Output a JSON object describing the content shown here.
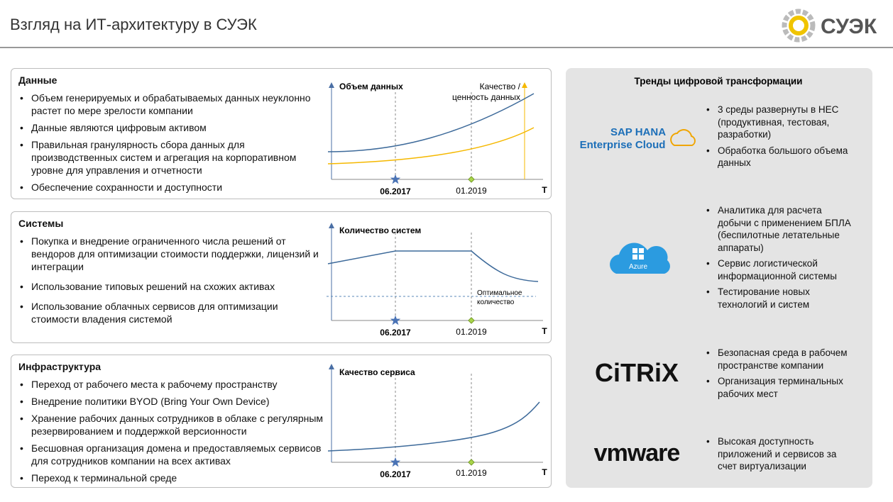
{
  "header": {
    "title": "Взгляд на ИТ-архитектуру в СУЭК",
    "logo": "СУЭК"
  },
  "sections": [
    {
      "title": "Данные",
      "bullets": [
        "Объем генерируемых и обрабатываемых данных неуклонно растет по мере зрелости компании",
        "Данные являются цифровым активом",
        "Правильная гранулярность сбора данных для производственных систем и агрегация на корпоративном уровне для управления и отчетности",
        "Обеспечение сохранности и доступности"
      ],
      "chart": {
        "y_label": "Объем данных",
        "y2_label": [
          "Качество /",
          "ценность данных"
        ],
        "marks": [
          "06.2017",
          "01.2019"
        ],
        "x_end": "T"
      }
    },
    {
      "title": "Системы",
      "bullets": [
        "Покупка и внедрение ограниченного числа решений от вендоров для оптимизации стоимости поддержки, лицензий и интеграции",
        "Использование типовых решений на схожих активах",
        "Использование облачных сервисов для оптимизации стоимости владения системой"
      ],
      "chart": {
        "y_label": "Количество систем",
        "note": [
          "Оптимальное",
          "количество"
        ],
        "marks": [
          "06.2017",
          "01.2019"
        ],
        "x_end": "T"
      }
    },
    {
      "title": "Инфраструктура",
      "bullets": [
        "Переход от рабочего места к рабочему пространству",
        "Внедрение политики BYOD (Bring Your Own Device)",
        "Хранение рабочих данных сотрудников в облаке с регулярным резервированием и поддержкой версионности",
        "Бесшовная организация домена и предоставляемых сервисов для сотрудников компании на всех активах",
        "Переход к терминальной среде"
      ],
      "chart": {
        "y_label": "Качество сервиса",
        "marks": [
          "06.2017",
          "01.2019"
        ],
        "x_end": "T"
      }
    }
  ],
  "trends": {
    "title": "Тренды цифровой трансформации",
    "items": [
      {
        "logo": [
          "SAP HANA",
          "Enterprise Cloud"
        ],
        "bullets": [
          "3 среды развернуты в HEC (продуктивная, тестовая, разработки)",
          "Обработка большого объема данных"
        ]
      },
      {
        "logo": [
          "Azure"
        ],
        "bullets": [
          "Аналитика для расчета добычи с применением БПЛА (беспилотные летательные аппараты)",
          "Сервис логистической информационной системы",
          "Тестирование новых технологий и систем"
        ]
      },
      {
        "logo": [
          "CiTRiX"
        ],
        "bullets": [
          "Безопасная среда в рабочем пространстве компании",
          "Организация терминальных рабочих мест"
        ]
      },
      {
        "logo": [
          "vmware"
        ],
        "bullets": [
          "Высокая доступность приложений и сервисов за счет виртуализации"
        ]
      }
    ]
  }
}
